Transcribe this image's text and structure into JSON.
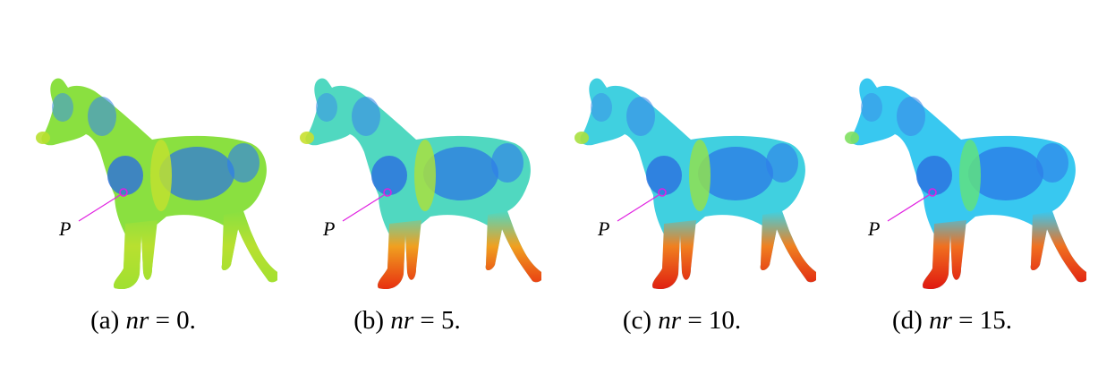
{
  "figure": {
    "point_label": "P",
    "marker_color": "#e020e0",
    "colormap": [
      "#2060e0",
      "#30c0f0",
      "#30e0a0",
      "#a0e030",
      "#f0e020",
      "#f08020",
      "#e02010"
    ],
    "panels": [
      {
        "id": "a",
        "prefix": "(a) ",
        "var": "nr",
        "eq": " = 0.",
        "nr": 0,
        "body": "#8ae040",
        "shoulder": "#c0e030",
        "legs": "#b8e030",
        "hooves": "#a0e030"
      },
      {
        "id": "b",
        "prefix": "(b) ",
        "var": "nr",
        "eq": " = 5.",
        "nr": 5,
        "body": "#50d8c0",
        "shoulder": "#a8e040",
        "legs": "#f0a020",
        "hooves": "#e83010"
      },
      {
        "id": "c",
        "prefix": "(c) ",
        "var": "nr",
        "eq": " = 10.",
        "nr": 10,
        "body": "#40d0e0",
        "shoulder": "#90e050",
        "legs": "#f08020",
        "hooves": "#e02010"
      },
      {
        "id": "d",
        "prefix": "(d) ",
        "var": "nr",
        "eq": " = 15.",
        "nr": 15,
        "body": "#38c8f0",
        "shoulder": "#60e080",
        "legs": "#f07020",
        "hooves": "#e01810"
      }
    ]
  }
}
